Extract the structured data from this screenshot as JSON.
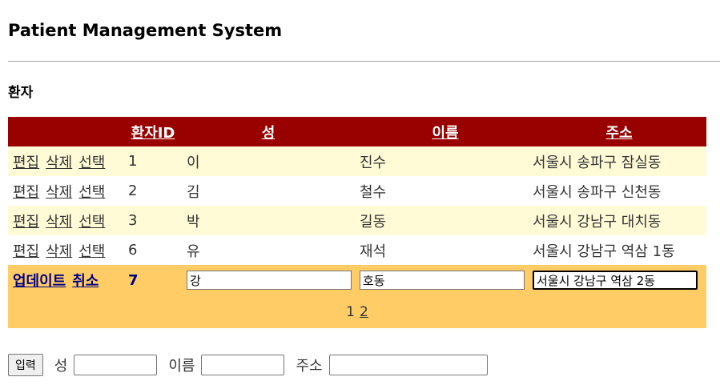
{
  "page": {
    "title": "Patient Management System",
    "section_title": "환자"
  },
  "grid": {
    "headers": {
      "id": "환자ID",
      "last_name": "성",
      "first_name": "이름",
      "address": "주소"
    },
    "row_commands": {
      "edit": "편집",
      "delete": "삭제",
      "select": "선택"
    },
    "rows": [
      {
        "id": "1",
        "last_name": "이",
        "first_name": "진수",
        "address": "서울시 송파구 잠실동"
      },
      {
        "id": "2",
        "last_name": "김",
        "first_name": "철수",
        "address": "서울시 송파구 신천동"
      },
      {
        "id": "3",
        "last_name": "박",
        "first_name": "길동",
        "address": "서울시 강남구 대치동"
      },
      {
        "id": "6",
        "last_name": "유",
        "first_name": "재석",
        "address": "서울시 강남구 역삼 1동"
      }
    ],
    "edit_row": {
      "update_label": "업데이트",
      "cancel_label": "취소",
      "id": "7",
      "last_name_value": "강",
      "first_name_value": "호동",
      "address_value": "서울시 강남구 역삼 2동"
    },
    "pager": {
      "current": "1",
      "next": "2"
    }
  },
  "insert_form": {
    "button_label": "입력",
    "last_name_label": "성",
    "first_name_label": "이름",
    "address_label": "주소"
  },
  "colors": {
    "header_bg": "#990000",
    "odd_row_bg": "#fffbd6",
    "edit_row_bg": "#ffcc66"
  }
}
